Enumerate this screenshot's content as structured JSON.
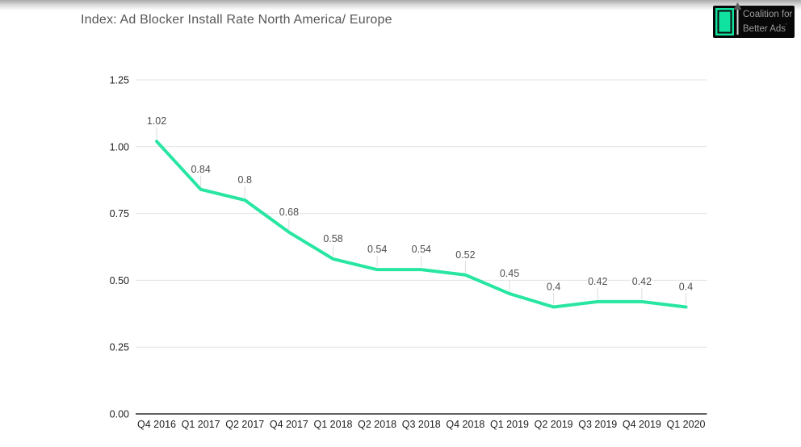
{
  "header": {
    "title": "Index: Ad Blocker Install Rate North America/ Europe"
  },
  "logo": {
    "line1": "Coalition for",
    "line2": "Better Ads",
    "mark": "'",
    "bg_color": "#080808",
    "accent_color": "#10e2a0",
    "text_color": "#9b9b9b"
  },
  "chart_data": {
    "type": "line",
    "title": "Index: Ad Blocker Install Rate North America/ Europe",
    "categories": [
      "Q4 2016",
      "Q1 2017",
      "Q2 2017",
      "Q4 2017",
      "Q1 2018",
      "Q2 2018",
      "Q3 2018",
      "Q4 2018",
      "Q1 2019",
      "Q2 2019",
      "Q3 2019",
      "Q4 2019",
      "Q1 2020"
    ],
    "values": [
      1.02,
      0.84,
      0.8,
      0.68,
      0.58,
      0.54,
      0.54,
      0.52,
      0.45,
      0.4,
      0.42,
      0.42,
      0.4
    ],
    "data_labels": [
      "1.02",
      "0.84",
      "0.8",
      "0.68",
      "0.58",
      "0.54",
      "0.54",
      "0.52",
      "0.45",
      "0.4",
      "0.42",
      "0.42",
      "0.4"
    ],
    "ylim": [
      0,
      1.25
    ],
    "yticks": [
      1.25,
      1.0,
      0.75,
      0.5,
      0.25,
      0.0
    ],
    "ytick_labels": [
      "1.25",
      "1.00",
      "0.75",
      "0.50",
      "0.25",
      "0.00"
    ],
    "xlabel": "",
    "ylabel": "",
    "grid": true,
    "legend": "none",
    "series_color": "#28e6a2",
    "grid_color": "#e2e2e2",
    "axis_color": "#616161",
    "leader_color": "#dddddd"
  }
}
